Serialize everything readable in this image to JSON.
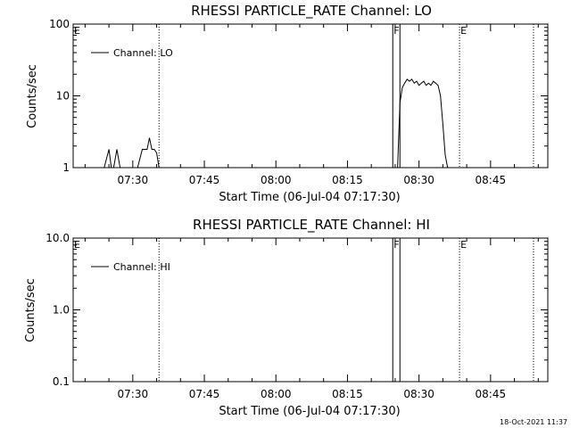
{
  "chart_data": [
    {
      "type": "line",
      "title": "RHESSI PARTICLE_RATE Channel: LO",
      "xlabel": "Start Time (06-Jul-04 07:17:30)",
      "ylabel": "Counts/sec",
      "yscale": "log",
      "ylim": [
        1,
        100
      ],
      "xlim": [
        "07:17:30",
        "08:57:00"
      ],
      "x_tick_labels": [
        "07:30",
        "07:45",
        "08:00",
        "08:15",
        "08:30",
        "08:45"
      ],
      "y_tick_labels": [
        "1",
        "10",
        "100"
      ],
      "legend": {
        "placement": "top-left",
        "entries": [
          "Channel: LO"
        ]
      },
      "series": [
        {
          "name": "Channel: LO",
          "x": [
            "07:24:00",
            "07:25:00",
            "07:25:30",
            "07:26:00",
            "07:26:40",
            "07:27:20",
            "07:28:00",
            "07:31:00",
            "07:32:00",
            "07:33:00",
            "07:33:30",
            "07:34:00",
            "07:34:30",
            "07:35:00",
            "07:35:30",
            "08:25:30",
            "08:26:00",
            "08:26:30",
            "08:27:00",
            "08:27:30",
            "08:28:00",
            "08:28:30",
            "08:29:00",
            "08:29:30",
            "08:30:00",
            "08:30:30",
            "08:31:00",
            "08:31:30",
            "08:32:00",
            "08:32:30",
            "08:33:00",
            "08:33:30",
            "08:34:00",
            "08:34:30",
            "08:35:00",
            "08:35:30",
            "08:36:00"
          ],
          "y": [
            1,
            1.8,
            1,
            1,
            1.8,
            1,
            1,
            1,
            1.8,
            1.8,
            2.6,
            1.8,
            1.8,
            1.6,
            1,
            1,
            8,
            13,
            15,
            17,
            16,
            17,
            15,
            16,
            14,
            15,
            16,
            14,
            15,
            14,
            16,
            15,
            14,
            10,
            4,
            1.5,
            1
          ]
        }
      ],
      "markers": [
        {
          "label": "E",
          "time": "07:17:30",
          "style": "dotted"
        },
        {
          "label": "",
          "time": "07:35:30",
          "style": "dotted"
        },
        {
          "label": "F",
          "time": "08:24:30",
          "style": "solid"
        },
        {
          "label": "",
          "time": "08:26:00",
          "style": "solid"
        },
        {
          "label": "E",
          "time": "08:38:30",
          "style": "dotted"
        },
        {
          "label": "",
          "time": "08:54:00",
          "style": "dotted"
        }
      ]
    },
    {
      "type": "line",
      "title": "RHESSI PARTICLE_RATE Channel: HI",
      "xlabel": "Start Time (06-Jul-04 07:17:30)",
      "ylabel": "Counts/sec",
      "yscale": "log",
      "ylim": [
        0.1,
        10
      ],
      "xlim": [
        "07:17:30",
        "08:57:00"
      ],
      "x_tick_labels": [
        "07:30",
        "07:45",
        "08:00",
        "08:15",
        "08:30",
        "08:45"
      ],
      "y_tick_labels": [
        "0.1",
        "1.0",
        "10.0"
      ],
      "legend": {
        "placement": "top-left",
        "entries": [
          "Channel: HI"
        ]
      },
      "series": [
        {
          "name": "Channel: HI",
          "x": [],
          "y": []
        }
      ],
      "markers": [
        {
          "label": "E",
          "time": "07:17:30",
          "style": "dotted"
        },
        {
          "label": "",
          "time": "07:35:30",
          "style": "dotted"
        },
        {
          "label": "F",
          "time": "08:24:30",
          "style": "solid"
        },
        {
          "label": "",
          "time": "08:26:00",
          "style": "solid"
        },
        {
          "label": "E",
          "time": "08:38:30",
          "style": "dotted"
        },
        {
          "label": "",
          "time": "08:54:00",
          "style": "dotted"
        }
      ]
    }
  ],
  "footer": {
    "timestamp": "18-Oct-2021 11:37"
  },
  "colors": {
    "background": "#ffffff",
    "foreground": "#000000"
  }
}
